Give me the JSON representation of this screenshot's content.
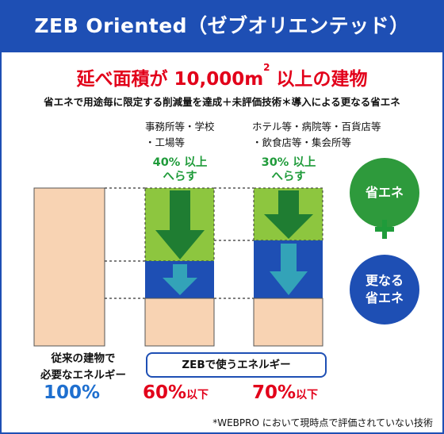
{
  "title": "ZEB Oriented（ゼブオリエンテッド）",
  "headline": {
    "prefix": "延べ面積が 10,000m",
    "sup": "2",
    "suffix": " 以上の建物"
  },
  "subline": "省エネで用途毎に限定する削減量を達成＋未評価技術＊導入による更なる省エネ",
  "categories": {
    "office": {
      "line1": "事務所等・学校",
      "line2": "・工場等"
    },
    "hotel": {
      "line1": "ホテル等・病院等・百貨店等",
      "line2": "・飲食店等・集会所等"
    }
  },
  "reductions": {
    "office": {
      "line1": "40% 以上",
      "line2": "へらす"
    },
    "hotel": {
      "line1": "30% 以上",
      "line2": "へらす"
    }
  },
  "legend": {
    "energy_saving": {
      "line1": "省エネ",
      "color": "#2e9a3c"
    },
    "further_saving": {
      "line1": "更なる",
      "line2": "省エネ",
      "color": "#1e4fb4"
    }
  },
  "conventional_label": {
    "line1": "従来の建物で",
    "line2": "必要なエネルギー"
  },
  "zeb_label": "ZEBで使うエネルギー",
  "percentages": {
    "conventional": {
      "value": "100%",
      "suffix": ""
    },
    "office": {
      "value": "60%",
      "suffix": "以下"
    },
    "hotel": {
      "value": "70%",
      "suffix": "以下"
    }
  },
  "footnote": "*WEBPRO において現時点で評価されていない技術",
  "colors": {
    "blue": "#1e4fb4",
    "red": "#e2001a",
    "green_text": "#1f9b3a",
    "light_green": "#8dc63f",
    "dark_green_arrow": "#1f7d32",
    "teal_arrow": "#33a3b8",
    "peach": "#f8d3b3"
  }
}
